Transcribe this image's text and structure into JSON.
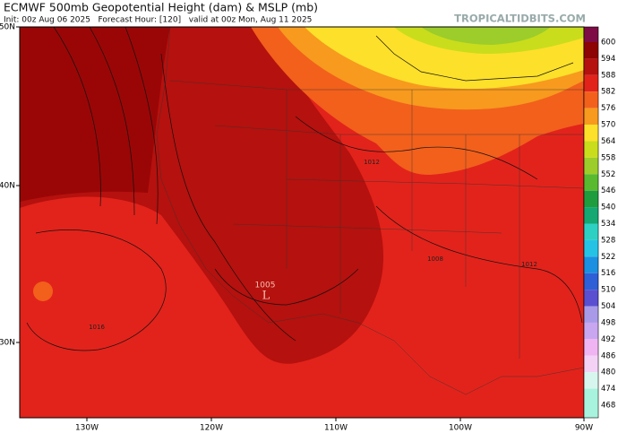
{
  "header": {
    "title": "ECMWF 500mb Geopotential Height (dam) & MSLP (mb)",
    "subtitle": "Init: 00z Aug 06 2025   Forecast Hour: [120]   valid at 00z Mon, Aug 11 2025",
    "watermark": "TROPICALTIDBITS.COM"
  },
  "latitude_labels": [
    "50N",
    "40N",
    "30N"
  ],
  "longitude_labels": [
    "130W",
    "120W",
    "110W",
    "100W",
    "90W"
  ],
  "map_labels": [
    "1005",
    "L",
    "1016",
    "1008",
    "1012",
    "1012"
  ],
  "colorbar": {
    "labels": [
      600,
      594,
      588,
      582,
      576,
      570,
      564,
      558,
      552,
      546,
      540,
      534,
      528,
      522,
      516,
      510,
      504,
      498,
      492,
      486,
      480,
      474,
      468
    ],
    "colors": [
      "#7e0b45",
      "#8e0303",
      "#b5110e",
      "#e2231b",
      "#f2601c",
      "#f79a1e",
      "#fde02a",
      "#c9dd1d",
      "#9ccd2a",
      "#59b92f",
      "#1f9d3e",
      "#15a873",
      "#2fd0c4",
      "#26c2e6",
      "#1b8fe0",
      "#2e5fd6",
      "#5a4fd0",
      "#a99ae8",
      "#c9a6f0",
      "#f1b4f2",
      "#f4d2f6",
      "#d7f6ee",
      "#a8f3dd"
    ]
  }
}
